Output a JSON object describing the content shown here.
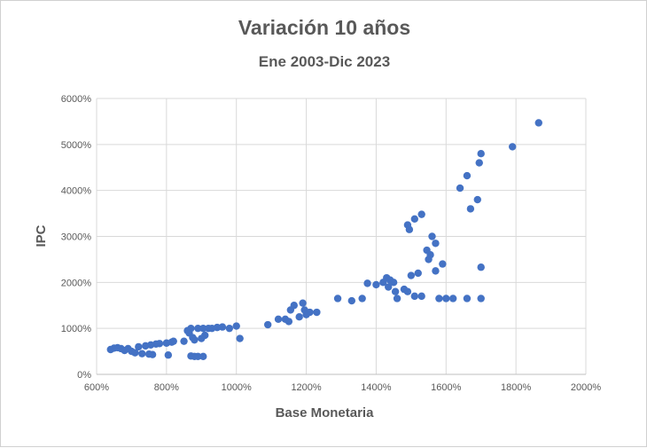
{
  "chart_data": {
    "type": "scatter",
    "title": "Variación 10 años",
    "subtitle": "Ene 2003-Dic 2023",
    "xlabel": "Base Monetaria",
    "ylabel": "IPC",
    "xlim": [
      600,
      2000
    ],
    "ylim": [
      0,
      6000
    ],
    "xticks": [
      "600%",
      "800%",
      "1000%",
      "1200%",
      "1400%",
      "1600%",
      "1800%",
      "2000%"
    ],
    "yticks": [
      "0%",
      "1000%",
      "2000%",
      "3000%",
      "4000%",
      "5000%",
      "6000%"
    ],
    "grid": true,
    "color": "#4472C4",
    "points": [
      [
        640,
        540
      ],
      [
        650,
        570
      ],
      [
        660,
        580
      ],
      [
        670,
        560
      ],
      [
        680,
        520
      ],
      [
        690,
        560
      ],
      [
        700,
        500
      ],
      [
        710,
        470
      ],
      [
        720,
        600
      ],
      [
        730,
        450
      ],
      [
        740,
        620
      ],
      [
        750,
        440
      ],
      [
        755,
        640
      ],
      [
        760,
        430
      ],
      [
        770,
        660
      ],
      [
        780,
        670
      ],
      [
        800,
        680
      ],
      [
        805,
        420
      ],
      [
        815,
        700
      ],
      [
        820,
        720
      ],
      [
        850,
        720
      ],
      [
        860,
        950
      ],
      [
        865,
        900
      ],
      [
        870,
        1000
      ],
      [
        875,
        800
      ],
      [
        880,
        750
      ],
      [
        890,
        1000
      ],
      [
        900,
        780
      ],
      [
        905,
        1000
      ],
      [
        910,
        850
      ],
      [
        920,
        1000
      ],
      [
        930,
        1000
      ],
      [
        945,
        1020
      ],
      [
        960,
        1030
      ],
      [
        980,
        1000
      ],
      [
        1000,
        1050
      ],
      [
        1010,
        780
      ],
      [
        870,
        400
      ],
      [
        880,
        390
      ],
      [
        890,
        390
      ],
      [
        905,
        390
      ],
      [
        1090,
        1080
      ],
      [
        1120,
        1200
      ],
      [
        1140,
        1200
      ],
      [
        1150,
        1150
      ],
      [
        1155,
        1400
      ],
      [
        1165,
        1500
      ],
      [
        1180,
        1250
      ],
      [
        1190,
        1550
      ],
      [
        1195,
        1400
      ],
      [
        1200,
        1300
      ],
      [
        1210,
        1350
      ],
      [
        1230,
        1350
      ],
      [
        1290,
        1650
      ],
      [
        1330,
        1600
      ],
      [
        1360,
        1650
      ],
      [
        1375,
        1980
      ],
      [
        1400,
        1950
      ],
      [
        1420,
        2000
      ],
      [
        1430,
        2100
      ],
      [
        1435,
        1900
      ],
      [
        1440,
        2050
      ],
      [
        1450,
        2000
      ],
      [
        1455,
        1800
      ],
      [
        1460,
        1650
      ],
      [
        1480,
        1850
      ],
      [
        1490,
        1800
      ],
      [
        1500,
        2150
      ],
      [
        1510,
        1700
      ],
      [
        1520,
        2200
      ],
      [
        1530,
        1700
      ],
      [
        1545,
        2700
      ],
      [
        1550,
        2500
      ],
      [
        1555,
        2600
      ],
      [
        1560,
        3000
      ],
      [
        1570,
        2850
      ],
      [
        1570,
        2250
      ],
      [
        1580,
        1650
      ],
      [
        1590,
        2400
      ],
      [
        1600,
        1650
      ],
      [
        1620,
        1650
      ],
      [
        1660,
        1650
      ],
      [
        1700,
        1650
      ],
      [
        1700,
        2330
      ],
      [
        1490,
        3250
      ],
      [
        1495,
        3150
      ],
      [
        1510,
        3380
      ],
      [
        1530,
        3480
      ],
      [
        1640,
        4050
      ],
      [
        1660,
        4320
      ],
      [
        1670,
        3600
      ],
      [
        1690,
        3800
      ],
      [
        1695,
        4600
      ],
      [
        1700,
        4800
      ],
      [
        1790,
        4950
      ],
      [
        1865,
        5470
      ]
    ]
  }
}
